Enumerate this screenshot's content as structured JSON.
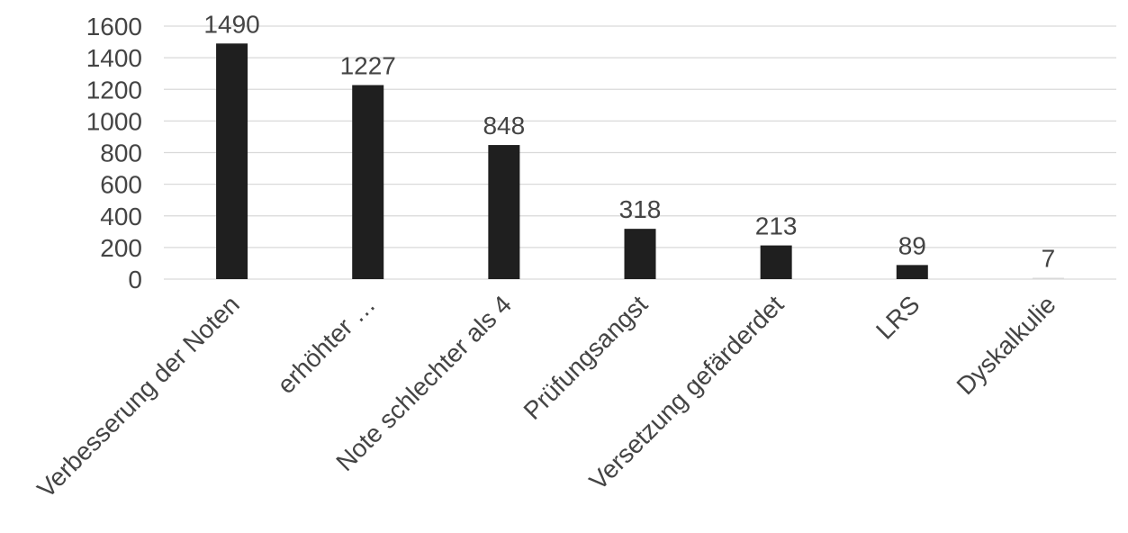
{
  "chart_data": {
    "type": "bar",
    "title": "",
    "xlabel": "",
    "ylabel": "",
    "categories": [
      "Verbesserung der Noten",
      "erhöhter …",
      "Note schlechter als 4",
      "Prüfungsangst",
      "Versetzung gefärderdet",
      "LRS",
      "Dyskalkulie"
    ],
    "values": [
      1490,
      1227,
      848,
      318,
      213,
      89,
      7
    ],
    "data_labels": [
      "1490",
      "1227",
      "848",
      "318",
      "213",
      "89",
      "7"
    ],
    "ylim": [
      0,
      1600
    ],
    "yticks": [
      0,
      200,
      400,
      600,
      800,
      1000,
      1200,
      1400,
      1600
    ],
    "ytick_labels": [
      "0",
      "200",
      "400",
      "600",
      "800",
      "1000",
      "1200",
      "1400",
      "1600"
    ],
    "grid": true,
    "legend": "none",
    "bar_color": "#1f1f1f",
    "last_bar_color": "#d9d9d9"
  }
}
